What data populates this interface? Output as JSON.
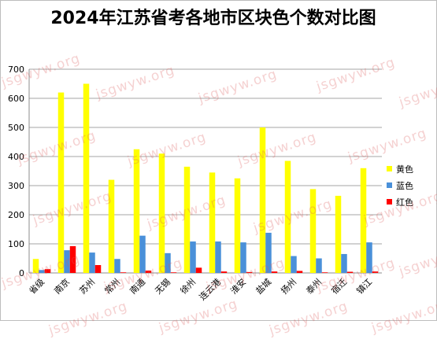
{
  "watermark": "jsgwyw.org",
  "chart_data": {
    "type": "bar",
    "title": "2024年江苏省考各地市区块色个数对比图",
    "xlabel": "",
    "ylabel": "",
    "ylim": [
      0,
      700
    ],
    "yticks": [
      0,
      100,
      200,
      300,
      400,
      500,
      600,
      700
    ],
    "grid": true,
    "legend_position": "right",
    "categories": [
      "省级",
      "南京",
      "苏州",
      "常州",
      "南通",
      "无锡",
      "徐州",
      "连云港",
      "淮安",
      "盐城",
      "扬州",
      "泰州",
      "宿迁",
      "镇江"
    ],
    "series": [
      {
        "name": "黄色",
        "color": "#ffff00",
        "values": [
          48,
          620,
          650,
          320,
          425,
          410,
          365,
          345,
          325,
          500,
          385,
          288,
          265,
          360
        ]
      },
      {
        "name": "蓝色",
        "color": "#4a90d9",
        "values": [
          10,
          78,
          70,
          48,
          128,
          68,
          108,
          108,
          105,
          138,
          58,
          50,
          65,
          105
        ]
      },
      {
        "name": "红色",
        "color": "#ff0000",
        "values": [
          13,
          92,
          27,
          2,
          8,
          2,
          18,
          5,
          3,
          5,
          7,
          2,
          4,
          5
        ]
      }
    ]
  }
}
